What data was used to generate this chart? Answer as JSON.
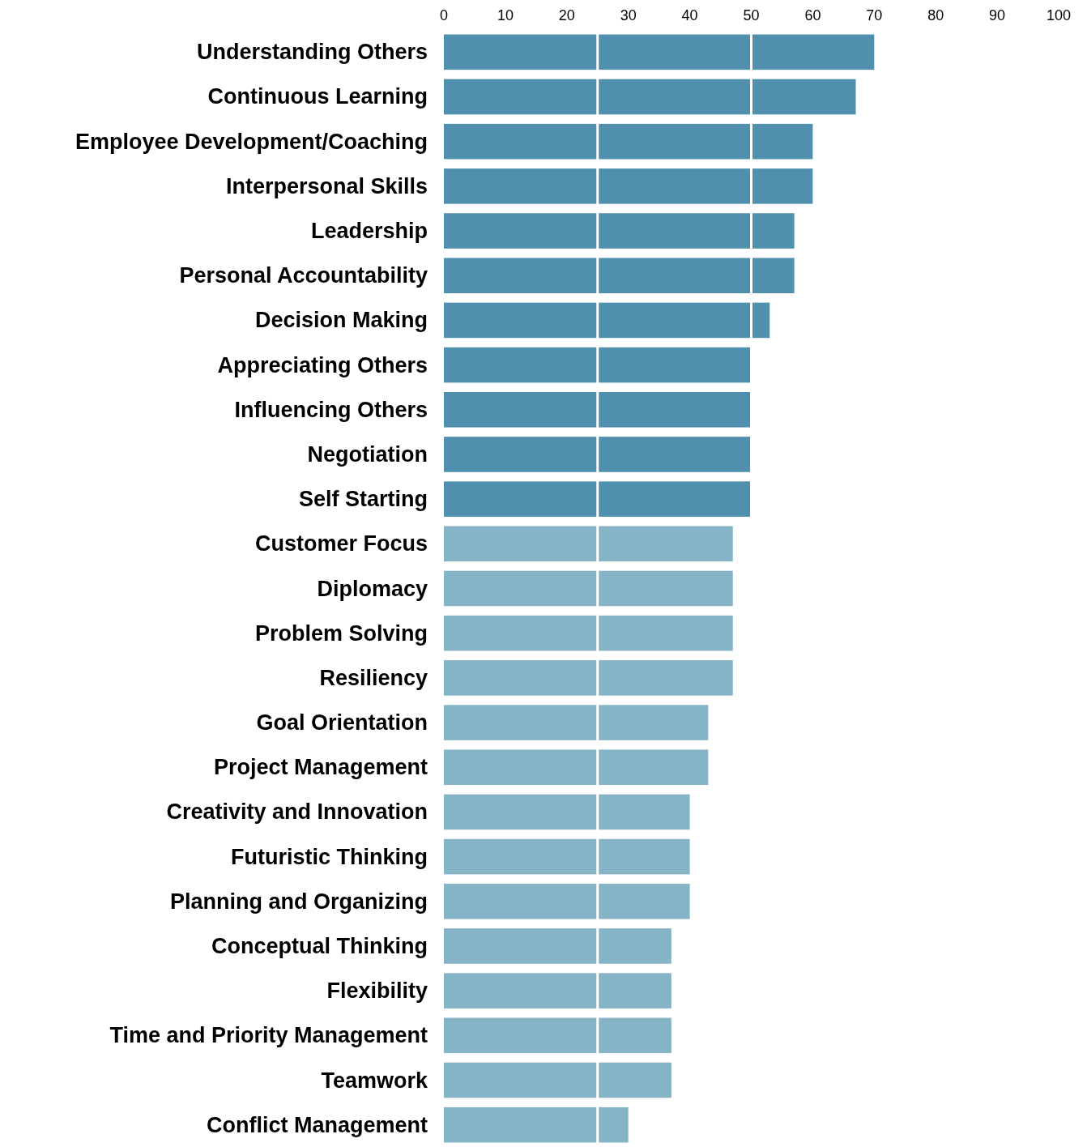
{
  "chart_data": {
    "type": "bar",
    "orientation": "horizontal",
    "categories": [
      "Understanding Others",
      "Continuous Learning",
      "Employee Development/Coaching",
      "Interpersonal Skills",
      "Leadership",
      "Personal Accountability",
      "Decision Making",
      "Appreciating Others",
      "Influencing Others",
      "Negotiation",
      "Self Starting",
      "Customer Focus",
      "Diplomacy",
      "Problem Solving",
      "Resiliency",
      "Goal Orientation",
      "Project Management",
      "Creativity and Innovation",
      "Futuristic Thinking",
      "Planning and Organizing",
      "Conceptual Thinking",
      "Flexibility",
      "Time and Priority Management",
      "Teamwork",
      "Conflict Management"
    ],
    "values": [
      70,
      67,
      60,
      60,
      57,
      57,
      53,
      50,
      50,
      50,
      50,
      47,
      47,
      47,
      47,
      43,
      43,
      40,
      40,
      40,
      37,
      37,
      37,
      37,
      30
    ],
    "colors": [
      "#5090ae",
      "#5090ae",
      "#5090ae",
      "#5090ae",
      "#5090ae",
      "#5090ae",
      "#5090ae",
      "#5090ae",
      "#5090ae",
      "#5090ae",
      "#5090ae",
      "#86b4c7",
      "#86b4c7",
      "#86b4c7",
      "#86b4c7",
      "#86b4c7",
      "#86b4c7",
      "#86b4c7",
      "#86b4c7",
      "#86b4c7",
      "#86b4c7",
      "#86b4c7",
      "#86b4c7",
      "#86b4c7",
      "#86b4c7"
    ],
    "xlim": [
      0,
      100
    ],
    "xticks": [
      0,
      10,
      20,
      30,
      40,
      50,
      60,
      70,
      80,
      90,
      100
    ],
    "ref_lines": [
      {
        "axis": "x",
        "value": 25,
        "color": "#ffffff"
      },
      {
        "axis": "x",
        "value": 50,
        "color": "#ffffff"
      }
    ],
    "grid": false
  }
}
